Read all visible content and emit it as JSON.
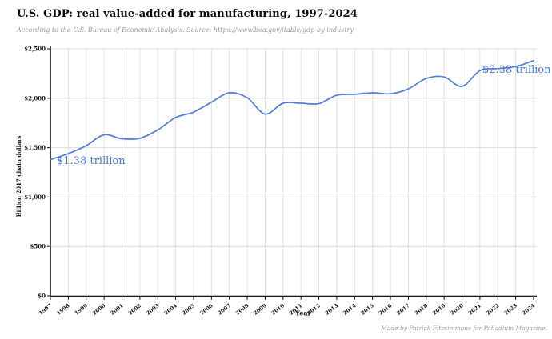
{
  "header": {
    "title": "U.S. GDP: real value-added for manufacturing, 1997-2024",
    "subtitle": "According to the U.S. Bureau of Economic Analysis. Source: https://www.bea.gov/itable/gdp-by-industry"
  },
  "chart_data": {
    "type": "line",
    "title": "U.S. GDP: real value-added for manufacturing, 1997-2024",
    "xlabel": "Year",
    "ylabel": "Billion 2017 chain dollars",
    "x": [
      1997,
      1998,
      1999,
      2000,
      2001,
      2002,
      2003,
      2004,
      2005,
      2006,
      2007,
      2008,
      2009,
      2010,
      2011,
      2012,
      2013,
      2014,
      2015,
      2016,
      2017,
      2018,
      2019,
      2020,
      2021,
      2022,
      2023,
      2024
    ],
    "series": [
      {
        "name": "Real value-added, manufacturing",
        "values": [
          1380,
          1440,
          1520,
          1630,
          1590,
          1595,
          1680,
          1805,
          1860,
          1960,
          2055,
          2005,
          1840,
          1950,
          1950,
          1945,
          2030,
          2040,
          2055,
          2045,
          2095,
          2200,
          2215,
          2120,
          2280,
          2300,
          2320,
          2380
        ]
      }
    ],
    "ylim": [
      0,
      2500
    ],
    "y_tick_values": [
      0,
      500,
      1000,
      1500,
      2000,
      2500
    ],
    "y_tick_labels": [
      "$0",
      "$500",
      "$1,000",
      "$1,500",
      "$2,000",
      "$2,500"
    ],
    "grid": true,
    "legend": "none",
    "line_color": "#4d7ce2",
    "annotations": [
      {
        "text": "$1.38 trillion",
        "at_year": 1997,
        "value": 1380
      },
      {
        "text": "$2.38 trillion",
        "at_year": 2024,
        "value": 2380
      }
    ]
  },
  "footer": {
    "credit": "Made by Patrick Fitzsimmons for Palladium Magazine."
  }
}
